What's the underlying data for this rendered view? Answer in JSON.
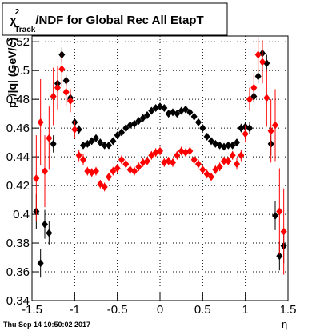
{
  "chart_data": {
    "type": "scatter",
    "title": {
      "symbol": "χ",
      "sup": "2",
      "sub": "Track",
      "text": "/NDF for Global Rec All EtapT"
    },
    "y_label": {
      "main": "p",
      "sub": "T",
      "text": "/|q| (GeV/c)"
    },
    "x_label": "η",
    "footer": "Thu Sep 14 10:50:02 2017",
    "xlim": [
      -1.5,
      1.5
    ],
    "ylim": [
      0.34,
      0.524
    ],
    "xticks": [
      -1.5,
      -1,
      -0.5,
      0,
      0.5,
      1,
      1.5
    ],
    "yticks": [
      0.34,
      0.36,
      0.38,
      0.4,
      0.42,
      0.44,
      0.46,
      0.48,
      0.5,
      0.52
    ],
    "grid": true,
    "x": [
      -1.45,
      -1.4,
      -1.35,
      -1.3,
      -1.25,
      -1.2,
      -1.15,
      -1.1,
      -1.05,
      -1.0,
      -0.95,
      -0.9,
      -0.85,
      -0.8,
      -0.75,
      -0.7,
      -0.65,
      -0.6,
      -0.55,
      -0.5,
      -0.45,
      -0.4,
      -0.35,
      -0.3,
      -0.25,
      -0.2,
      -0.15,
      -0.1,
      -0.05,
      0,
      0.05,
      0.1,
      0.15,
      0.2,
      0.25,
      0.3,
      0.35,
      0.4,
      0.45,
      0.5,
      0.55,
      0.6,
      0.65,
      0.7,
      0.75,
      0.8,
      0.85,
      0.9,
      0.95,
      1.0,
      1.05,
      1.1,
      1.15,
      1.2,
      1.25,
      1.3,
      1.35,
      1.4,
      1.45
    ],
    "series": [
      {
        "color": "#000000",
        "values": [
          0.402,
          0.366,
          0.393,
          0.387,
          0.449,
          0.491,
          0.511,
          0.493,
          0.481,
          0.464,
          0.459,
          0.448,
          0.449,
          0.451,
          0.453,
          0.45,
          0.448,
          0.448,
          0.451,
          0.455,
          0.457,
          0.46,
          0.462,
          0.463,
          0.465,
          0.467,
          0.469,
          0.472,
          0.474,
          0.475,
          0.474,
          0.47,
          0.471,
          0.47,
          0.472,
          0.473,
          0.471,
          0.468,
          0.464,
          0.46,
          0.454,
          0.451,
          0.449,
          0.448,
          0.447,
          0.448,
          0.448,
          0.45,
          0.46,
          0.461,
          0.46,
          0.482,
          0.496,
          0.512,
          0.505,
          0.449,
          0.399,
          0.371,
          0.378
        ],
        "errors": [
          0.012,
          0.01,
          0.01,
          0.008,
          0.006,
          0.005,
          0.005,
          0.004,
          0.004,
          0.003,
          0.003,
          0.002,
          0.002,
          0.002,
          0.002,
          0.002,
          0.002,
          0.002,
          0.002,
          0.002,
          0.002,
          0.002,
          0.002,
          0.002,
          0.002,
          0.002,
          0.002,
          0.002,
          0.002,
          0.002,
          0.002,
          0.002,
          0.002,
          0.002,
          0.002,
          0.002,
          0.002,
          0.002,
          0.002,
          0.002,
          0.002,
          0.002,
          0.002,
          0.002,
          0.002,
          0.002,
          0.002,
          0.002,
          0.003,
          0.003,
          0.004,
          0.004,
          0.005,
          0.005,
          0.006,
          0.008,
          0.01,
          0.01,
          0.012
        ]
      },
      {
        "color": "#ff0000",
        "values": [
          0.425,
          0.464,
          0.43,
          0.453,
          0.482,
          0.488,
          0.501,
          0.485,
          0.479,
          0.459,
          0.441,
          0.438,
          0.43,
          0.429,
          0.43,
          0.421,
          0.419,
          0.426,
          0.43,
          0.432,
          0.438,
          0.435,
          0.431,
          0.43,
          0.433,
          0.436,
          0.437,
          0.441,
          0.443,
          0.444,
          0.436,
          0.437,
          0.436,
          0.441,
          0.444,
          0.443,
          0.444,
          0.438,
          0.435,
          0.431,
          0.428,
          0.426,
          0.431,
          0.433,
          0.437,
          0.437,
          0.441,
          0.435,
          0.441,
          0.456,
          0.48,
          0.488,
          0.511,
          0.506,
          0.481,
          0.458,
          0.462,
          0.402,
          0.388
        ],
        "errors": [
          0.03,
          0.03,
          0.025,
          0.022,
          0.02,
          0.015,
          0.012,
          0.01,
          0.008,
          0.006,
          0.004,
          0.004,
          0.003,
          0.003,
          0.003,
          0.003,
          0.003,
          0.003,
          0.003,
          0.003,
          0.003,
          0.003,
          0.003,
          0.003,
          0.003,
          0.003,
          0.003,
          0.003,
          0.003,
          0.003,
          0.003,
          0.003,
          0.003,
          0.003,
          0.003,
          0.003,
          0.003,
          0.003,
          0.003,
          0.003,
          0.003,
          0.003,
          0.003,
          0.003,
          0.003,
          0.003,
          0.003,
          0.004,
          0.004,
          0.006,
          0.008,
          0.01,
          0.012,
          0.015,
          0.02,
          0.022,
          0.025,
          0.03,
          0.03
        ]
      }
    ]
  }
}
